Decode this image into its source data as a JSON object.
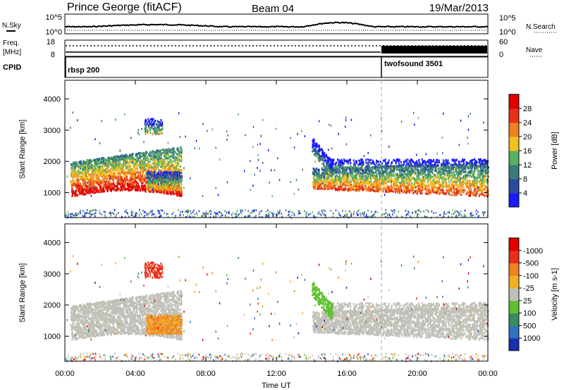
{
  "header": {
    "station": "Prince George (fitACF)",
    "beam": "Beam 04",
    "date": "19/Mar/2013"
  },
  "noise_panel": {
    "left_label": "N.Sky",
    "right_label": "N.Search",
    "left_ticks": [
      "10^5",
      "10^0"
    ],
    "right_ticks": [
      "10^5",
      "10^0"
    ]
  },
  "freq_panel": {
    "left_label_1": "Freq.",
    "left_label_2": "[MHz]",
    "left_ticks": [
      "18",
      "8"
    ],
    "right_label": "Nave",
    "right_ticks": [
      "60",
      "0"
    ]
  },
  "cpid_panel": {
    "label": "CPID",
    "programs": [
      {
        "name": "rbsp 200",
        "start_hour": 0
      },
      {
        "name": "twofsound 3501",
        "start_hour": 18
      }
    ]
  },
  "chart_data": [
    {
      "type": "heatmap",
      "panel": "power",
      "ylabel": "Slant Range [km]",
      "y_ticks": [
        1000,
        2000,
        3000,
        4000
      ],
      "ylim": [
        200,
        4600
      ],
      "xlim_hours": [
        0,
        24
      ],
      "colorbar": {
        "label": "Power [dB]",
        "tick_labels": [
          "4",
          "8",
          "12",
          "16",
          "20",
          "24",
          "28"
        ],
        "colors": [
          "#1a1aff",
          "#2a4ba0",
          "#3c7a78",
          "#58b060",
          "#f0c020",
          "#f08020",
          "#e83018",
          "#e00000"
        ]
      },
      "echo_regions": [
        {
          "t0": 0.4,
          "t1": 6.6,
          "r0": 1000,
          "r1": 2300,
          "note": "dense sub-auroral band"
        },
        {
          "t0": 4.0,
          "t1": 6.6,
          "r0": 1100,
          "r1": 1700,
          "note": "patch"
        },
        {
          "t0": 14.0,
          "t1": 24.0,
          "r0": 900,
          "r1": 2100,
          "note": "evening band"
        }
      ]
    },
    {
      "type": "heatmap",
      "panel": "velocity",
      "ylabel": "Slant Range [km]",
      "y_ticks": [
        1000,
        2000,
        3000,
        4000
      ],
      "ylim": [
        200,
        4600
      ],
      "xlim_hours": [
        0,
        24
      ],
      "colorbar": {
        "label": "Velocity [m s-1]",
        "tick_labels": [
          "1000",
          "500",
          "100",
          "25",
          "-25",
          "-100",
          "-500",
          "-1000"
        ],
        "colors": [
          "#1a2eb0",
          "#3070c0",
          "#3a8a60",
          "#60c030",
          "#c0c0b8",
          "#f0b020",
          "#f08020",
          "#e83018",
          "#e00000"
        ]
      }
    }
  ],
  "x_axis": {
    "label": "Time UT",
    "tick_labels": [
      "00:00",
      "04:00",
      "08:00",
      "12:00",
      "16:00",
      "20:00",
      "00:00"
    ]
  },
  "colors": {
    "axes": "#000000",
    "ground_scatter": "#c0c0b8",
    "program_change_line": "#999999"
  }
}
